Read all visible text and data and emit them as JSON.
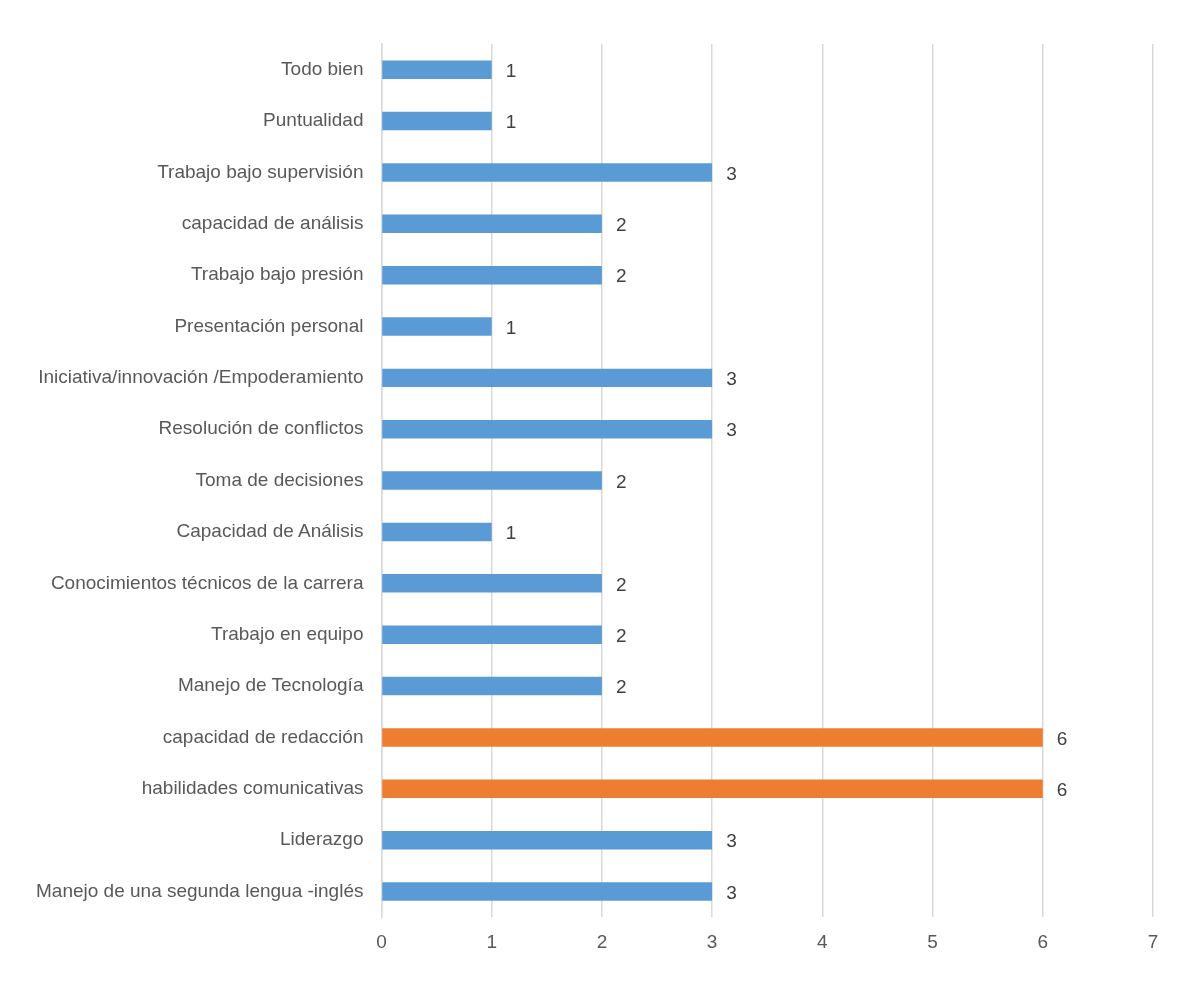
{
  "chart_data": {
    "type": "bar",
    "orientation": "horizontal",
    "categories": [
      "Todo bien",
      "Puntualidad",
      "Trabajo bajo supervisión",
      "capacidad de análisis",
      "Trabajo bajo presión",
      "Presentación personal",
      "Iniciativa/innovación /Empoderamiento",
      "Resolución de conflictos",
      "Toma de decisiones",
      "Capacidad de Análisis",
      "Conocimientos técnicos de la carrera",
      "Trabajo en equipo",
      "Manejo de Tecnología",
      "capacidad de redacción",
      "habilidades comunicativas",
      "Liderazgo",
      "Manejo de una segunda lengua -inglés"
    ],
    "values": [
      1,
      1,
      3,
      2,
      2,
      1,
      3,
      3,
      2,
      1,
      2,
      2,
      2,
      6,
      6,
      3,
      3
    ],
    "colors": [
      "#5b9bd5",
      "#5b9bd5",
      "#5b9bd5",
      "#5b9bd5",
      "#5b9bd5",
      "#5b9bd5",
      "#5b9bd5",
      "#5b9bd5",
      "#5b9bd5",
      "#5b9bd5",
      "#5b9bd5",
      "#5b9bd5",
      "#5b9bd5",
      "#ed7d31",
      "#ed7d31",
      "#5b9bd5",
      "#5b9bd5"
    ],
    "xlim": [
      0,
      7
    ],
    "xticks": [
      0,
      1,
      2,
      3,
      4,
      5,
      6,
      7
    ],
    "grid": "x",
    "data_labels": true,
    "legend": false
  }
}
